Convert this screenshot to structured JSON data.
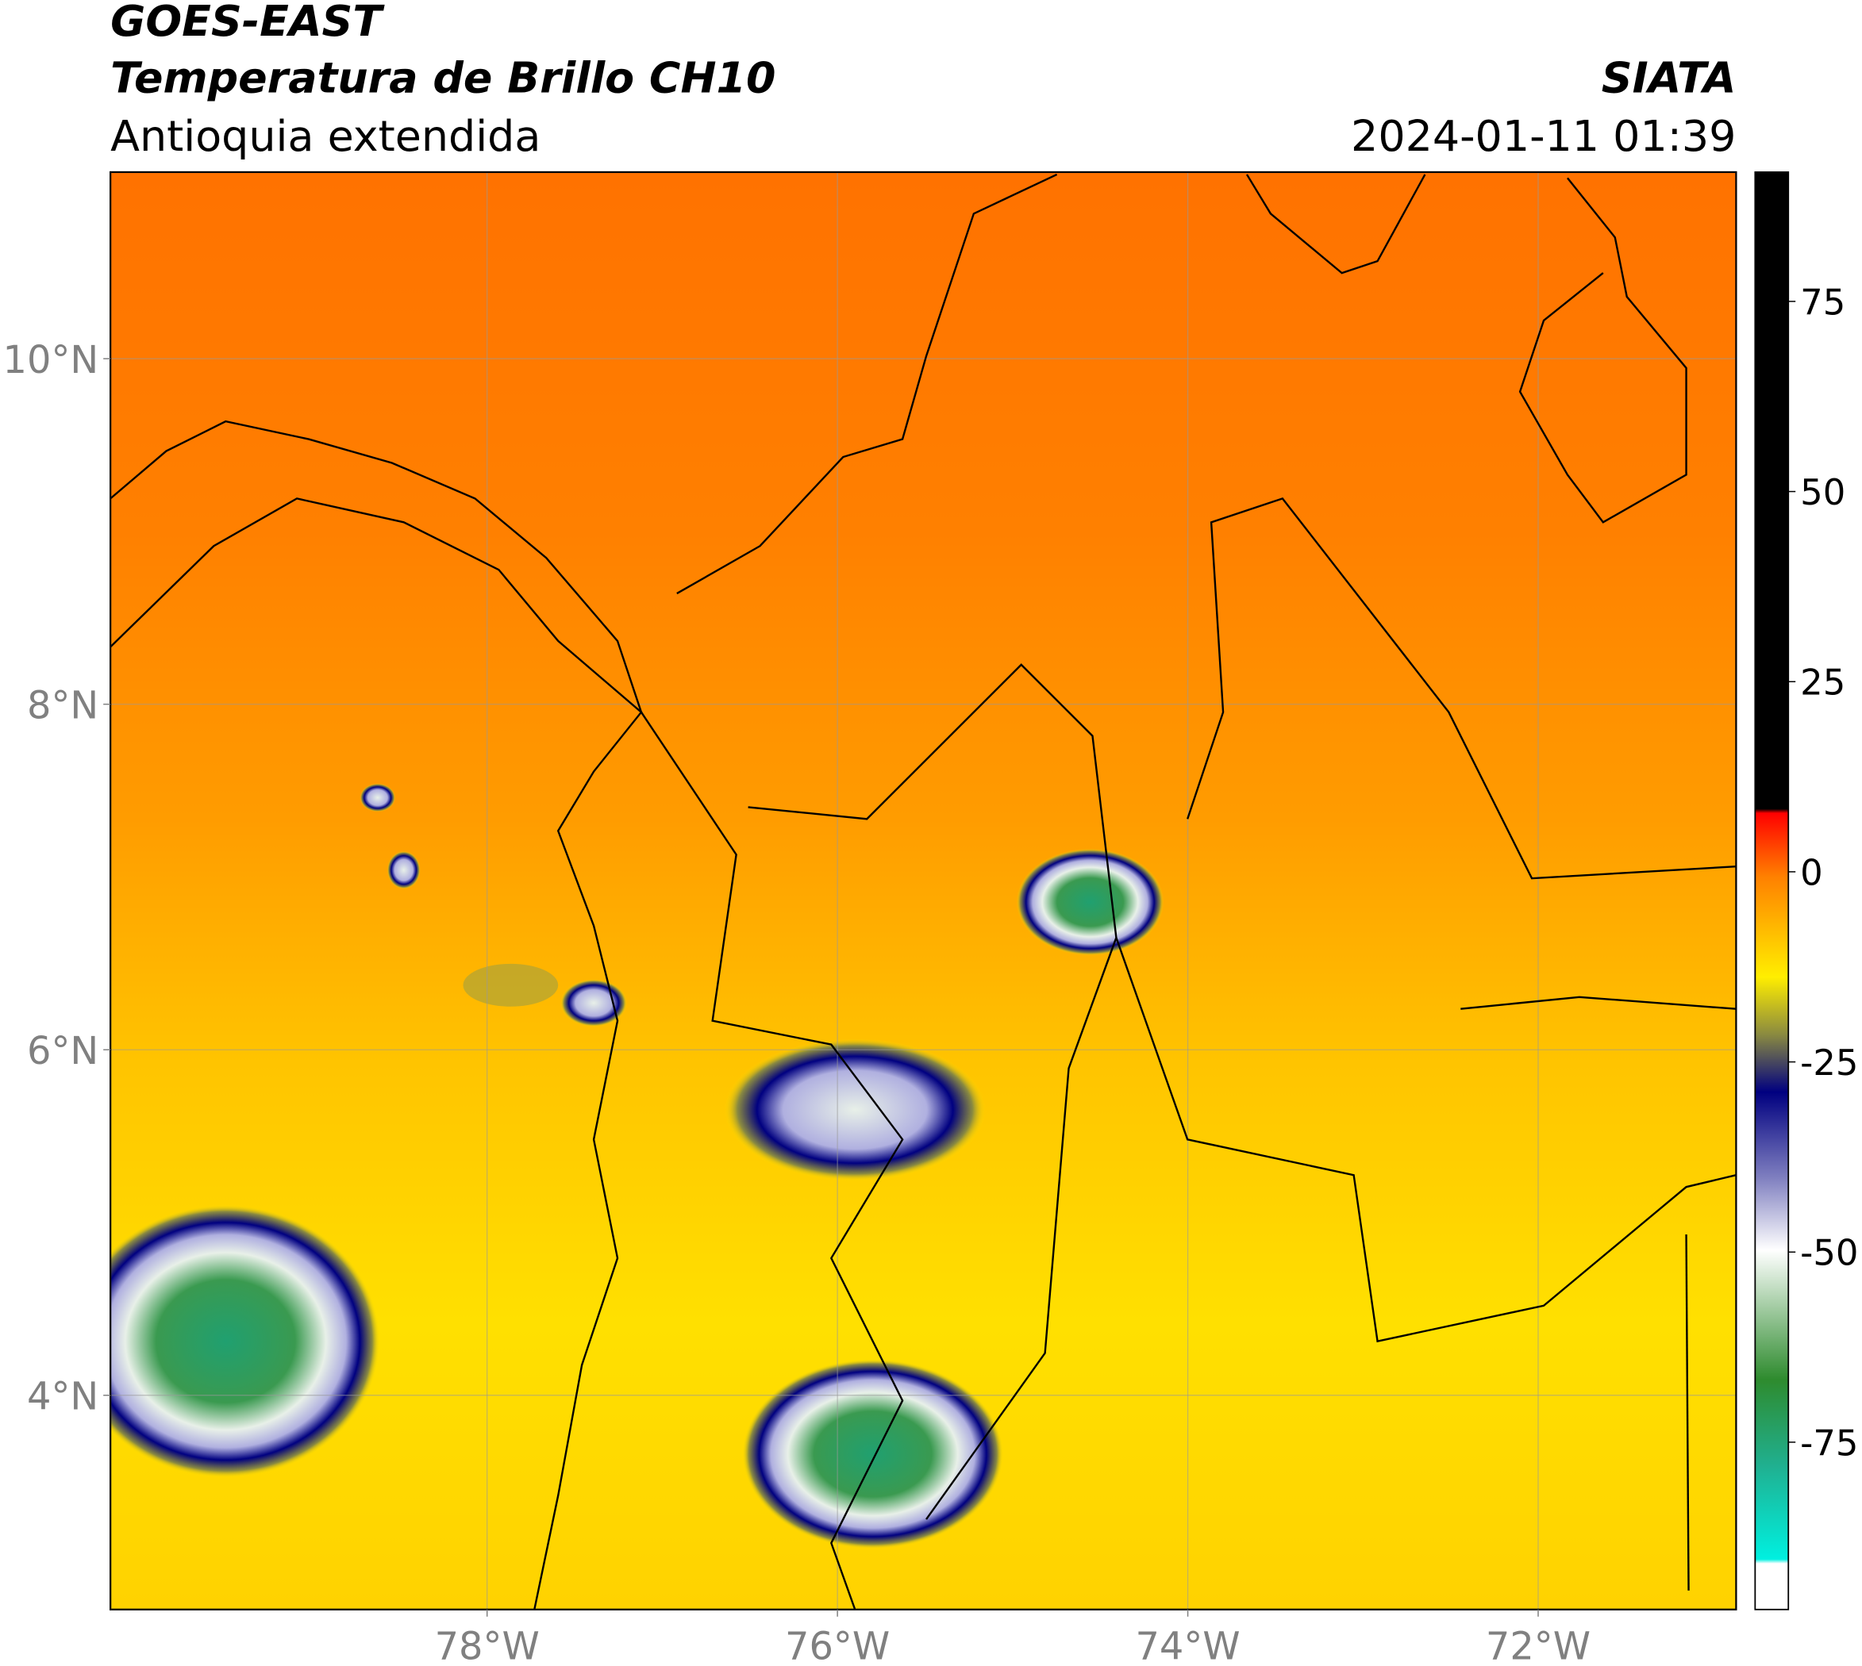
{
  "header": {
    "satellite": "GOES-EAST",
    "title": "Temperatura de Brillo CH10",
    "region": "Antioquia extendida",
    "source": "SIATA",
    "datetime": "2024-01-11 01:39"
  },
  "map": {
    "xlim": [
      -80.15,
      -70.87
    ],
    "ylim": [
      2.76,
      11.08
    ],
    "xticks": [
      {
        "value": -78,
        "label": "78°W"
      },
      {
        "value": -76,
        "label": "76°W"
      },
      {
        "value": -74,
        "label": "74°W"
      },
      {
        "value": -72,
        "label": "72°W"
      }
    ],
    "yticks": [
      {
        "value": 10,
        "label": "10°N"
      },
      {
        "value": 8,
        "label": "8°N"
      },
      {
        "value": 6,
        "label": "6°N"
      },
      {
        "value": 4,
        "label": "4°N"
      }
    ],
    "grid": true
  },
  "colorbar": {
    "lim": [
      -97,
      92
    ],
    "ticks": [
      75,
      50,
      25,
      0,
      -25,
      -50,
      -75
    ]
  }
}
